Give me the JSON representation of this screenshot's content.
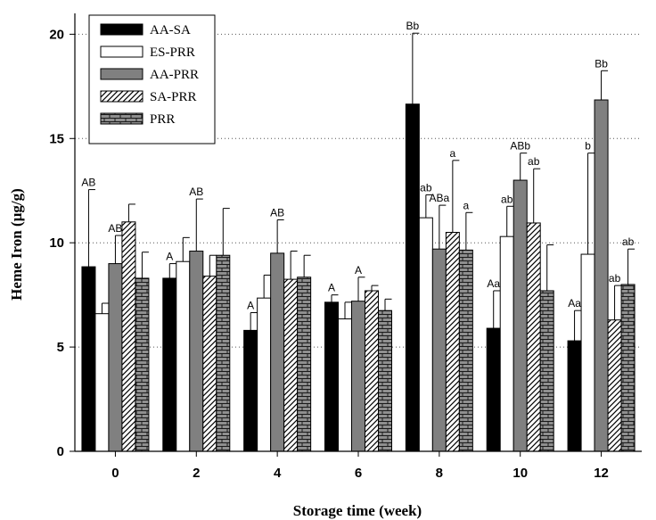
{
  "chart_data": {
    "type": "bar",
    "title": "",
    "xlabel": "Storage time (week)",
    "ylabel": "Heme Iron (µg/g)",
    "ylim": [
      0,
      21
    ],
    "yticks": [
      "0",
      "5",
      "10",
      "15",
      "20"
    ],
    "grid": "horizontal dotted",
    "legend_position": "top-left",
    "categories": [
      "0",
      "2",
      "4",
      "6",
      "8",
      "10",
      "12"
    ],
    "series": [
      {
        "name": "AA-SA",
        "color": "#000000",
        "pattern": "solid-black",
        "values": [
          8.85,
          8.3,
          5.8,
          7.15,
          16.65,
          5.9,
          5.3
        ],
        "errors": [
          3.7,
          0.7,
          0.85,
          0.35,
          3.4,
          1.8,
          1.45
        ],
        "labels": [
          "AB",
          "A",
          "A",
          "A",
          "Bb",
          "Aa",
          "Aa"
        ]
      },
      {
        "name": "ES-PRR",
        "color": "#ffffff",
        "pattern": "solid-white",
        "values": [
          6.6,
          9.1,
          7.35,
          6.35,
          11.2,
          10.3,
          9.45
        ],
        "errors": [
          0.5,
          1.15,
          1.1,
          0.8,
          1.1,
          1.45,
          4.85
        ],
        "labels": [
          "",
          "",
          "",
          "",
          "ab",
          "ab",
          "b"
        ]
      },
      {
        "name": "AA-PRR",
        "color": "#808080",
        "pattern": "solid-gray",
        "values": [
          9.0,
          9.6,
          9.5,
          7.2,
          9.7,
          13.0,
          16.85
        ],
        "errors": [
          1.35,
          2.5,
          1.6,
          1.15,
          2.1,
          1.3,
          1.4
        ],
        "labels": [
          "AB",
          "AB",
          "AB",
          "A",
          "ABa",
          "ABb",
          "Bb"
        ]
      },
      {
        "name": "SA-PRR",
        "color": "#ffffff",
        "pattern": "diagonal-hatch",
        "values": [
          11.0,
          8.4,
          8.25,
          7.7,
          10.5,
          10.95,
          6.3
        ],
        "errors": [
          0.85,
          1.0,
          1.35,
          0.25,
          3.45,
          2.6,
          1.65
        ],
        "labels": [
          "",
          "",
          "",
          "",
          "a",
          "ab",
          "ab"
        ]
      },
      {
        "name": "PRR",
        "color": "#909090",
        "pattern": "brick",
        "values": [
          8.3,
          9.4,
          8.35,
          6.75,
          9.65,
          7.7,
          8.0
        ],
        "errors": [
          1.25,
          2.25,
          1.05,
          0.55,
          1.8,
          2.2,
          1.7
        ],
        "labels": [
          "",
          "",
          "",
          "",
          "a",
          "",
          "ab"
        ]
      }
    ]
  }
}
